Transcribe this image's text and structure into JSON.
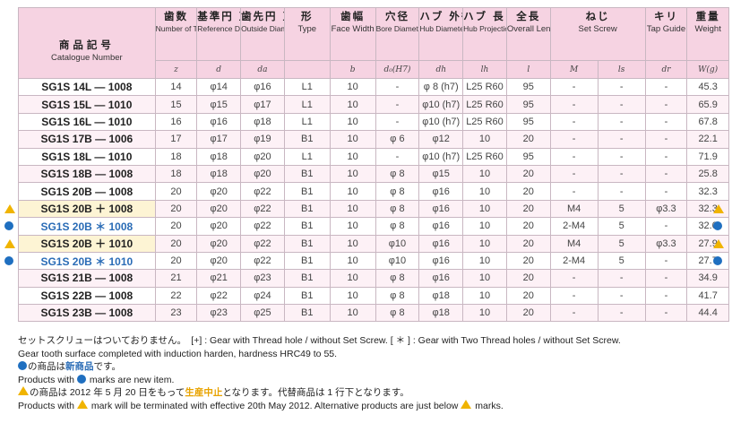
{
  "columns": [
    {
      "jp": "商品記号",
      "en": "Catalogue Number",
      "sym": ""
    },
    {
      "jp": "歯数",
      "en": "Number of Teeth",
      "sym": "z"
    },
    {
      "jp": "基準円 直径",
      "en": "Reference Diameter",
      "sym": "d"
    },
    {
      "jp": "歯先円 直径",
      "en": "Outside Diameter",
      "sym": "da"
    },
    {
      "jp": "形",
      "en": "Type",
      "sym": ""
    },
    {
      "jp": "歯幅",
      "en": "Face Width",
      "sym": "b"
    },
    {
      "jp": "穴径",
      "en": "Bore Diameter",
      "sym": "d₀(H7)"
    },
    {
      "jp": "ハブ 外径",
      "en": "Hub Diameter",
      "sym": "dh"
    },
    {
      "jp": "ハブ 長さ",
      "en": "Hub Projection",
      "sym": "lh"
    },
    {
      "jp": "全長",
      "en": "Overall Length",
      "sym": "l"
    },
    {
      "jp": "ねじ",
      "en": "Set Screw",
      "sym_m": "M",
      "sym_l": "ls"
    },
    {
      "jp": "キリ",
      "en": "Tap Guide",
      "sym": "dr"
    },
    {
      "jp": "重量",
      "en": "Weight",
      "sym": "W(g)"
    }
  ],
  "rows": [
    {
      "cat": "SG1S 14L — 1008",
      "z": "14",
      "d": "φ14",
      "da": "φ16",
      "type": "L1",
      "b": "10",
      "bore": "-",
      "hub_d": "φ 8 (h7)",
      "hub_l": "L25 R60",
      "len": "95",
      "m": "-",
      "ls": "-",
      "dr": "-",
      "w": "45.3",
      "mark": ""
    },
    {
      "cat": "SG1S 15L — 1010",
      "z": "15",
      "d": "φ15",
      "da": "φ17",
      "type": "L1",
      "b": "10",
      "bore": "-",
      "hub_d": "φ10 (h7)",
      "hub_l": "L25 R60",
      "len": "95",
      "m": "-",
      "ls": "-",
      "dr": "-",
      "w": "65.9",
      "mark": ""
    },
    {
      "cat": "SG1S 16L — 1010",
      "z": "16",
      "d": "φ16",
      "da": "φ18",
      "type": "L1",
      "b": "10",
      "bore": "-",
      "hub_d": "φ10 (h7)",
      "hub_l": "L25 R60",
      "len": "95",
      "m": "-",
      "ls": "-",
      "dr": "-",
      "w": "67.8",
      "mark": ""
    },
    {
      "cat": "SG1S 17B — 1006",
      "z": "17",
      "d": "φ17",
      "da": "φ19",
      "type": "B1",
      "b": "10",
      "bore": "φ 6",
      "hub_d": "φ12",
      "hub_l": "10",
      "len": "20",
      "m": "-",
      "ls": "-",
      "dr": "-",
      "w": "22.1",
      "mark": ""
    },
    {
      "cat": "SG1S 18L — 1010",
      "z": "18",
      "d": "φ18",
      "da": "φ20",
      "type": "L1",
      "b": "10",
      "bore": "-",
      "hub_d": "φ10 (h7)",
      "hub_l": "L25 R60",
      "len": "95",
      "m": "-",
      "ls": "-",
      "dr": "-",
      "w": "71.9",
      "mark": ""
    },
    {
      "cat": "SG1S 18B — 1008",
      "z": "18",
      "d": "φ18",
      "da": "φ20",
      "type": "B1",
      "b": "10",
      "bore": "φ 8",
      "hub_d": "φ15",
      "hub_l": "10",
      "len": "20",
      "m": "-",
      "ls": "-",
      "dr": "-",
      "w": "25.8",
      "mark": ""
    },
    {
      "cat": "SG1S 20B — 1008",
      "z": "20",
      "d": "φ20",
      "da": "φ22",
      "type": "B1",
      "b": "10",
      "bore": "φ 8",
      "hub_d": "φ16",
      "hub_l": "10",
      "len": "20",
      "m": "-",
      "ls": "-",
      "dr": "-",
      "w": "32.3",
      "mark": ""
    },
    {
      "cat": "SG1S 20B ＋ 1008",
      "z": "20",
      "d": "φ20",
      "da": "φ22",
      "type": "B1",
      "b": "10",
      "bore": "φ 8",
      "hub_d": "φ16",
      "hub_l": "10",
      "len": "20",
      "m": "M4",
      "ls": "5",
      "dr": "φ3.3",
      "w": "32.3",
      "mark": "triangle"
    },
    {
      "cat": "SG1S 20B ＊ 1008",
      "z": "20",
      "d": "φ20",
      "da": "φ22",
      "type": "B1",
      "b": "10",
      "bore": "φ 8",
      "hub_d": "φ16",
      "hub_l": "10",
      "len": "20",
      "m": "2-M4",
      "ls": "5",
      "dr": "-",
      "w": "32.0",
      "mark": "circle"
    },
    {
      "cat": "SG1S 20B ＋ 1010",
      "z": "20",
      "d": "φ20",
      "da": "φ22",
      "type": "B1",
      "b": "10",
      "bore": "φ10",
      "hub_d": "φ16",
      "hub_l": "10",
      "len": "20",
      "m": "M4",
      "ls": "5",
      "dr": "φ3.3",
      "w": "27.9",
      "mark": "triangle"
    },
    {
      "cat": "SG1S 20B ＊ 1010",
      "z": "20",
      "d": "φ20",
      "da": "φ22",
      "type": "B1",
      "b": "10",
      "bore": "φ10",
      "hub_d": "φ16",
      "hub_l": "10",
      "len": "20",
      "m": "2-M4",
      "ls": "5",
      "dr": "-",
      "w": "27.7",
      "mark": "circle"
    },
    {
      "cat": "SG1S 21B — 1008",
      "z": "21",
      "d": "φ21",
      "da": "φ23",
      "type": "B1",
      "b": "10",
      "bore": "φ 8",
      "hub_d": "φ16",
      "hub_l": "10",
      "len": "20",
      "m": "-",
      "ls": "-",
      "dr": "-",
      "w": "34.9",
      "mark": ""
    },
    {
      "cat": "SG1S 22B — 1008",
      "z": "22",
      "d": "φ22",
      "da": "φ24",
      "type": "B1",
      "b": "10",
      "bore": "φ 8",
      "hub_d": "φ18",
      "hub_l": "10",
      "len": "20",
      "m": "-",
      "ls": "-",
      "dr": "-",
      "w": "41.7",
      "mark": ""
    },
    {
      "cat": "SG1S 23B — 1008",
      "z": "23",
      "d": "φ23",
      "da": "φ25",
      "type": "B1",
      "b": "10",
      "bore": "φ 8",
      "hub_d": "φ18",
      "hub_l": "10",
      "len": "20",
      "m": "-",
      "ls": "-",
      "dr": "-",
      "w": "44.4",
      "mark": ""
    }
  ],
  "notes": {
    "line1": "セットスクリューはついておりません。　[+] : Gear with Thread hole / without Set Screw.  [ ＊ ] : Gear with Two Thread holes / without Set Screw.",
    "line2": "Gear tooth surface completed with induction harden, hardness HRC49 to 55.",
    "line3_pre": "の商品は",
    "line3_word": "新商品",
    "line3_post": "です。",
    "line4_pre": "Products with ",
    "line4_post": " marks are new item.",
    "line5_pre": "の商品は 2012 年 5 月 20 日をもって",
    "line5_word": "生産中止",
    "line5_post": "となります。代替商品は 1 行下となります。",
    "line6_pre": "Products with ",
    "line6_post": " mark will be terminated with effective 20th May 2012. Alternative products are just below ",
    "line6_end": " marks."
  },
  "colors": {
    "header_bg": "#f6d3e2",
    "row_alt_bg": "#fdf1f6",
    "new_item_blue": "#1f6fc0",
    "discontinued_yellow": "#f0b400"
  },
  "icons": {
    "new": "blue-circle-icon",
    "discontinued": "yellow-triangle-icon"
  }
}
